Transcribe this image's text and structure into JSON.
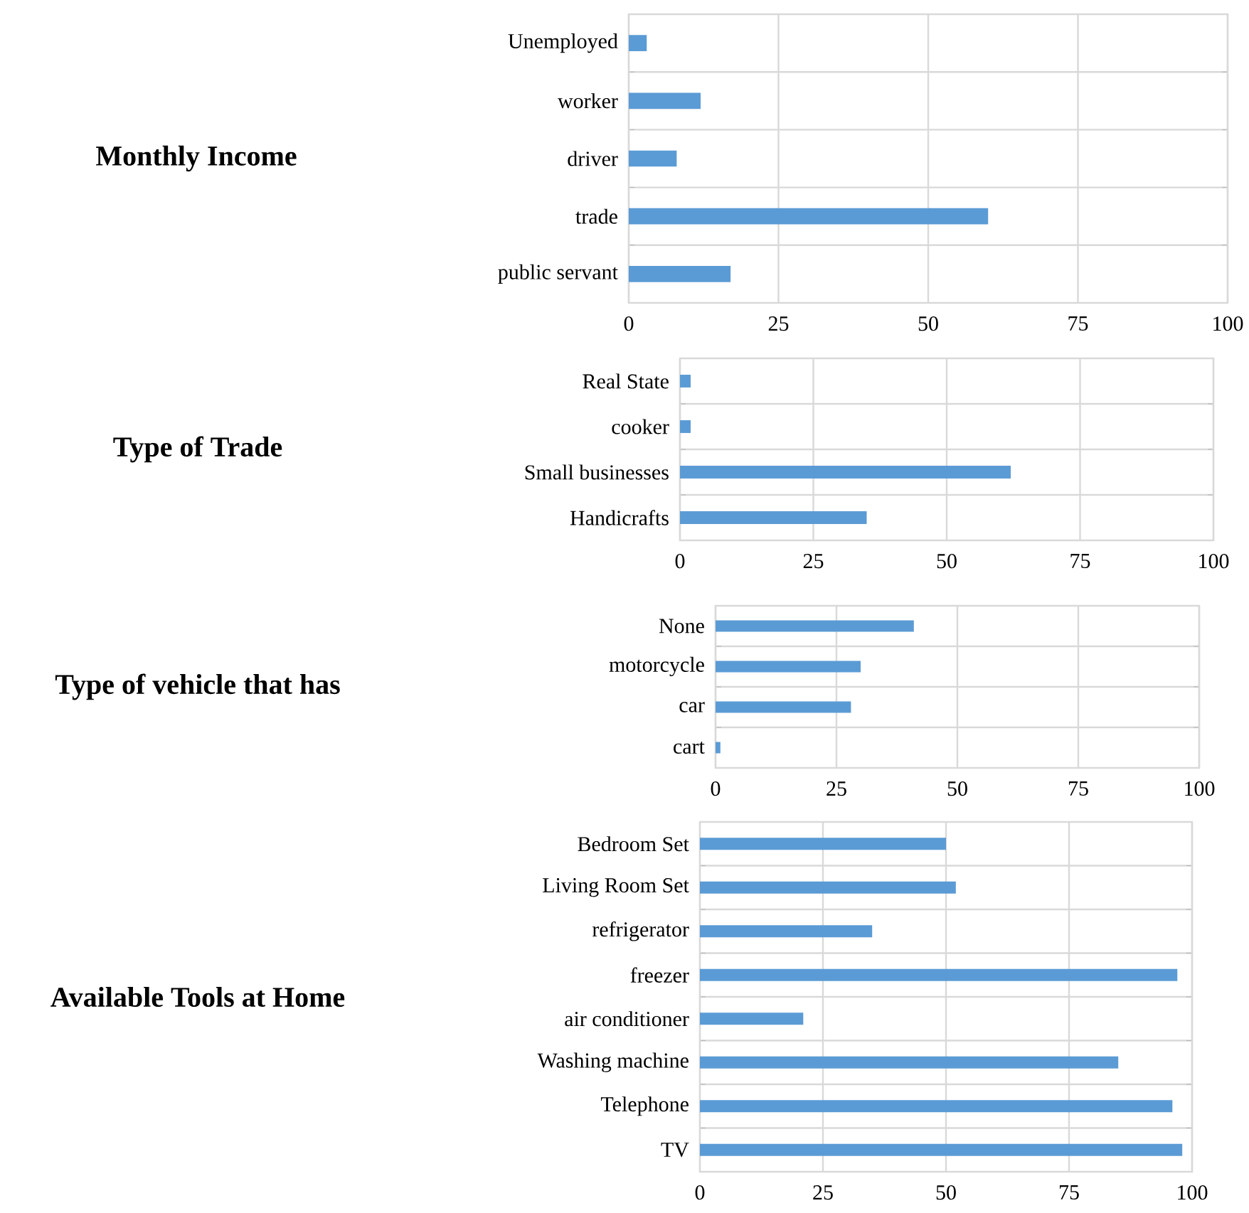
{
  "chart_data": [
    {
      "type": "bar",
      "orientation": "horizontal",
      "ylabel": "Monthly Income",
      "categories": [
        "Unemployed",
        "worker",
        "driver",
        "trade",
        "public servant"
      ],
      "values": [
        3,
        12,
        8,
        60,
        17
      ],
      "color": "#5b9bd5",
      "xlim": [
        0,
        100
      ],
      "xticks": [
        0,
        25,
        50,
        75,
        100
      ],
      "grid": true
    },
    {
      "type": "bar",
      "orientation": "horizontal",
      "ylabel": "Type of Trade",
      "categories": [
        "Real State",
        "cooker",
        "Small businesses",
        "Handicrafts"
      ],
      "values": [
        2,
        2,
        62,
        35
      ],
      "color": "#5b9bd5",
      "xlim": [
        0,
        100
      ],
      "xticks": [
        0,
        25,
        50,
        75,
        100
      ],
      "grid": true
    },
    {
      "type": "bar",
      "orientation": "horizontal",
      "ylabel": "Type of vehicle that has",
      "categories": [
        "None",
        "motorcycle",
        "car",
        "cart"
      ],
      "values": [
        41,
        30,
        28,
        1
      ],
      "color": "#5b9bd5",
      "xlim": [
        0,
        100
      ],
      "xticks": [
        0,
        25,
        50,
        75,
        100
      ],
      "grid": true
    },
    {
      "type": "bar",
      "orientation": "horizontal",
      "ylabel": "Available Tools at Home",
      "categories": [
        "Bedroom Set",
        "Living Room Set",
        "refrigerator",
        "freezer",
        "air conditioner",
        "Washing machine",
        "Telephone",
        "TV"
      ],
      "values": [
        50,
        52,
        35,
        97,
        21,
        85,
        96,
        98
      ],
      "color": "#5b9bd5",
      "xlim": [
        0,
        100
      ],
      "xticks": [
        0,
        25,
        50,
        75,
        100
      ],
      "grid": true
    }
  ]
}
